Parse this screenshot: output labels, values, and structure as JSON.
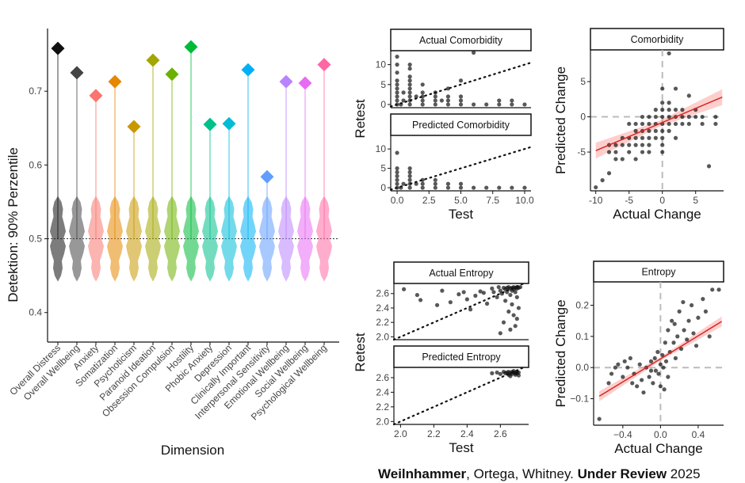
{
  "footer": {
    "author_bold": "Weilnhammer",
    "rest": ", Ortega, Whitney. ",
    "status_bold": "Under Review",
    "year": " 2025"
  },
  "chart_data": [
    {
      "type": "violin",
      "ylabel": "Detektion: 90% Perzentile",
      "xlabel": "Dimension",
      "ylim": [
        0.36,
        0.785
      ],
      "yticks": [
        0.4,
        0.5,
        0.6,
        0.7
      ],
      "reference_line": 0.5,
      "categories": [
        "Overall Distress",
        "Overall Wellbeing",
        "Anxiety",
        "Somatization",
        "Psychoticism",
        "Paranoid Ideation",
        "Obsession Compulsion",
        "Hostility",
        "Phobic Anxiety",
        "Depression",
        "Clinically Important",
        "Interpersonal Sensitivity",
        "Emotional Wellbeing",
        "Social Wellbeing",
        "Psychological Wellbeing"
      ],
      "colors": [
        "#111111",
        "#444444",
        "#F8766D",
        "#E58700",
        "#C99800",
        "#A3A500",
        "#6BB100",
        "#00BA38",
        "#00C08B",
        "#00BCD8",
        "#00B0F6",
        "#619CFF",
        "#B983FF",
        "#E76BF3",
        "#FF67A4"
      ],
      "values": [
        0.758,
        0.725,
        0.694,
        0.713,
        0.652,
        0.742,
        0.723,
        0.76,
        0.655,
        0.656,
        0.729,
        0.584,
        0.713,
        0.711,
        0.736
      ]
    },
    {
      "type": "scatter",
      "title": "Actual Comorbidity",
      "ylabel": "Retest",
      "xlim": [
        -0.5,
        10.5
      ],
      "ylim": [
        -0.8,
        13.5
      ],
      "yticks": [
        0,
        5,
        10
      ],
      "reference": "identity",
      "points": [
        [
          0,
          0
        ],
        [
          0,
          1
        ],
        [
          0,
          2
        ],
        [
          0,
          3
        ],
        [
          0,
          4
        ],
        [
          0,
          5
        ],
        [
          0,
          6
        ],
        [
          0,
          8
        ],
        [
          0,
          10
        ],
        [
          0,
          12
        ],
        [
          0.3,
          0
        ],
        [
          0.5,
          1
        ],
        [
          0.5,
          3
        ],
        [
          1,
          0
        ],
        [
          1,
          1
        ],
        [
          1,
          2
        ],
        [
          1,
          3
        ],
        [
          1,
          4
        ],
        [
          1,
          5
        ],
        [
          1,
          6
        ],
        [
          1,
          7
        ],
        [
          1,
          9
        ],
        [
          1,
          10
        ],
        [
          1.5,
          2
        ],
        [
          2,
          0
        ],
        [
          2,
          1
        ],
        [
          2,
          2
        ],
        [
          2,
          3
        ],
        [
          2,
          5
        ],
        [
          3,
          0
        ],
        [
          3,
          1
        ],
        [
          3,
          2
        ],
        [
          3,
          3
        ],
        [
          3.5,
          1
        ],
        [
          4,
          0
        ],
        [
          4,
          1
        ],
        [
          4,
          2
        ],
        [
          4,
          4
        ],
        [
          5,
          0
        ],
        [
          5,
          1
        ],
        [
          5,
          2
        ],
        [
          5,
          6
        ],
        [
          6,
          0
        ],
        [
          6,
          13
        ],
        [
          7,
          0
        ],
        [
          8,
          0
        ],
        [
          8,
          1
        ],
        [
          9,
          0
        ],
        [
          9,
          1
        ],
        [
          10,
          0
        ]
      ]
    },
    {
      "type": "scatter",
      "title": "Predicted Comorbidity",
      "xlabel": "Test",
      "ylabel": "Retest",
      "xlim": [
        -0.5,
        10.5
      ],
      "ylim": [
        -0.8,
        13.5
      ],
      "xticks": [
        0.0,
        2.5,
        5.0,
        7.5,
        10.0
      ],
      "xtick_labels": [
        "0.0",
        "2.5",
        "5.0",
        "7.5",
        "10.0"
      ],
      "yticks": [
        0,
        5,
        10
      ],
      "reference": "identity",
      "points": [
        [
          0,
          0
        ],
        [
          0,
          1
        ],
        [
          0,
          2
        ],
        [
          0,
          3
        ],
        [
          0,
          4
        ],
        [
          0,
          5
        ],
        [
          0,
          9
        ],
        [
          0.3,
          0
        ],
        [
          0.5,
          1
        ],
        [
          1,
          0
        ],
        [
          1,
          1
        ],
        [
          1,
          2
        ],
        [
          1,
          3
        ],
        [
          1,
          4
        ],
        [
          1,
          5
        ],
        [
          1.5,
          1
        ],
        [
          2,
          0
        ],
        [
          2,
          1
        ],
        [
          2,
          2
        ],
        [
          3,
          0
        ],
        [
          3,
          1
        ],
        [
          3,
          2
        ],
        [
          4,
          0
        ],
        [
          4,
          1
        ],
        [
          5,
          0
        ],
        [
          5,
          1
        ],
        [
          6,
          0
        ],
        [
          7,
          0
        ],
        [
          8,
          0
        ],
        [
          9,
          0
        ],
        [
          10,
          0
        ]
      ]
    },
    {
      "type": "scatter",
      "title": "Comorbidity",
      "xlabel": "Actual Change",
      "ylabel": "Predicted Change",
      "xlim": [
        -10.8,
        9.2
      ],
      "ylim": [
        -10.5,
        9.5
      ],
      "xticks": [
        -10,
        -5,
        0,
        5
      ],
      "yticks": [
        -5,
        0,
        5
      ],
      "zero_lines": true,
      "regression": {
        "x": [
          -10,
          9
        ],
        "y": [
          -4.8,
          2.8
        ]
      },
      "points": [
        [
          -10,
          -10
        ],
        [
          -9,
          -9
        ],
        [
          -8,
          -8
        ],
        [
          -8,
          -5
        ],
        [
          -8,
          -4
        ],
        [
          -7,
          -6
        ],
        [
          -7,
          -5
        ],
        [
          -7,
          -4
        ],
        [
          -6,
          -6
        ],
        [
          -6,
          -4
        ],
        [
          -6,
          -3
        ],
        [
          -5,
          -5
        ],
        [
          -5,
          -4
        ],
        [
          -5,
          -3
        ],
        [
          -5,
          -1
        ],
        [
          -4,
          -6
        ],
        [
          -4,
          -4
        ],
        [
          -4,
          -3
        ],
        [
          -4,
          -2
        ],
        [
          -4,
          -1
        ],
        [
          -3,
          -5
        ],
        [
          -3,
          -4
        ],
        [
          -3,
          -3
        ],
        [
          -3,
          -2
        ],
        [
          -3,
          -1
        ],
        [
          -3,
          0
        ],
        [
          -2,
          -5
        ],
        [
          -2,
          -4
        ],
        [
          -2,
          -3
        ],
        [
          -2,
          -2
        ],
        [
          -2,
          -1
        ],
        [
          -2,
          0
        ],
        [
          -1,
          -3
        ],
        [
          -1,
          -2
        ],
        [
          -1,
          -1
        ],
        [
          -1,
          0
        ],
        [
          -1,
          1
        ],
        [
          0,
          -5
        ],
        [
          0,
          -4
        ],
        [
          0,
          -3
        ],
        [
          0,
          -2
        ],
        [
          0,
          -1
        ],
        [
          0,
          0
        ],
        [
          0,
          1
        ],
        [
          0,
          2
        ],
        [
          0,
          4
        ],
        [
          1,
          -2
        ],
        [
          1,
          -1
        ],
        [
          1,
          0
        ],
        [
          1,
          1
        ],
        [
          1,
          2
        ],
        [
          1,
          9
        ],
        [
          2,
          -3
        ],
        [
          2,
          -1
        ],
        [
          2,
          0
        ],
        [
          2,
          1
        ],
        [
          2,
          4
        ],
        [
          3,
          -1
        ],
        [
          3,
          0
        ],
        [
          3,
          1
        ],
        [
          4,
          -1
        ],
        [
          4,
          0
        ],
        [
          4,
          3
        ],
        [
          5,
          0
        ],
        [
          5,
          1
        ],
        [
          6,
          -1
        ],
        [
          6,
          0
        ],
        [
          7,
          -7
        ],
        [
          8,
          -1
        ],
        [
          8,
          0
        ]
      ]
    },
    {
      "type": "scatter",
      "title": "Actual Entropy",
      "ylabel": "Retest",
      "xlim": [
        1.96,
        2.77
      ],
      "ylim": [
        1.96,
        2.74
      ],
      "yticks": [
        2.0,
        2.2,
        2.4,
        2.6
      ],
      "ytick_labels": [
        "2.0",
        "2.2",
        "2.4",
        "2.6"
      ],
      "reference": "identity",
      "points": [
        [
          2.02,
          2.66
        ],
        [
          2.1,
          2.58
        ],
        [
          2.12,
          2.51
        ],
        [
          2.22,
          2.44
        ],
        [
          2.25,
          2.64
        ],
        [
          2.3,
          2.48
        ],
        [
          2.35,
          2.59
        ],
        [
          2.38,
          2.62
        ],
        [
          2.4,
          2.52
        ],
        [
          2.42,
          2.38
        ],
        [
          2.45,
          2.57
        ],
        [
          2.48,
          2.63
        ],
        [
          2.5,
          2.61
        ],
        [
          2.52,
          2.46
        ],
        [
          2.55,
          2.67
        ],
        [
          2.56,
          2.62
        ],
        [
          2.58,
          2.55
        ],
        [
          2.59,
          2.69
        ],
        [
          2.6,
          2.64
        ],
        [
          2.6,
          2.05
        ],
        [
          2.61,
          2.6
        ],
        [
          2.62,
          2.68
        ],
        [
          2.62,
          2.2
        ],
        [
          2.63,
          2.66
        ],
        [
          2.63,
          2.5
        ],
        [
          2.64,
          2.68
        ],
        [
          2.64,
          2.62
        ],
        [
          2.65,
          2.69
        ],
        [
          2.65,
          2.35
        ],
        [
          2.66,
          2.67
        ],
        [
          2.66,
          2.58
        ],
        [
          2.66,
          2.1
        ],
        [
          2.67,
          2.68
        ],
        [
          2.67,
          2.64
        ],
        [
          2.67,
          2.45
        ],
        [
          2.68,
          2.69
        ],
        [
          2.68,
          2.66
        ],
        [
          2.68,
          2.3
        ],
        [
          2.69,
          2.68
        ],
        [
          2.69,
          2.62
        ],
        [
          2.69,
          2.15
        ],
        [
          2.7,
          2.69
        ],
        [
          2.7,
          2.67
        ],
        [
          2.7,
          2.55
        ],
        [
          2.7,
          2.25
        ],
        [
          2.71,
          2.68
        ],
        [
          2.71,
          2.4
        ],
        [
          2.72,
          2.69
        ]
      ]
    },
    {
      "type": "scatter",
      "title": "Predicted Entropy",
      "xlabel": "Test",
      "ylabel": "Retest",
      "xlim": [
        1.96,
        2.77
      ],
      "ylim": [
        1.96,
        2.74
      ],
      "xticks": [
        2.0,
        2.2,
        2.4,
        2.6
      ],
      "xtick_labels": [
        "2.0",
        "2.2",
        "2.4",
        "2.6"
      ],
      "yticks": [
        2.0,
        2.2,
        2.4,
        2.6
      ],
      "ytick_labels": [
        "2.0",
        "2.2",
        "2.4",
        "2.6"
      ],
      "reference": "identity",
      "points": [
        [
          2.55,
          2.66
        ],
        [
          2.58,
          2.67
        ],
        [
          2.6,
          2.65
        ],
        [
          2.62,
          2.68
        ],
        [
          2.63,
          2.66
        ],
        [
          2.64,
          2.67
        ],
        [
          2.65,
          2.64
        ],
        [
          2.65,
          2.68
        ],
        [
          2.66,
          2.66
        ],
        [
          2.66,
          2.62
        ],
        [
          2.67,
          2.68
        ],
        [
          2.67,
          2.65
        ],
        [
          2.68,
          2.67
        ],
        [
          2.68,
          2.69
        ],
        [
          2.69,
          2.66
        ],
        [
          2.69,
          2.64
        ],
        [
          2.7,
          2.68
        ],
        [
          2.7,
          2.66
        ],
        [
          2.71,
          2.67
        ],
        [
          2.71,
          2.63
        ]
      ]
    },
    {
      "type": "scatter",
      "title": "Entropy",
      "xlabel": "Actual Change",
      "ylabel": "Predicted Change",
      "xlim": [
        -0.71,
        0.67
      ],
      "ylim": [
        -0.185,
        0.275
      ],
      "xticks": [
        -0.4,
        0.0,
        0.4
      ],
      "xtick_labels": [
        "−0.4",
        "0.0",
        "0.4"
      ],
      "yticks": [
        -0.1,
        0.0,
        0.1,
        0.2
      ],
      "ytick_labels": [
        "−0.1",
        "0.0",
        "0.1",
        "0.2"
      ],
      "zero_lines": true,
      "regression": {
        "x": [
          -0.65,
          0.65
        ],
        "y": [
          -0.092,
          0.148
        ]
      },
      "points": [
        [
          -0.65,
          -0.165
        ],
        [
          -0.55,
          -0.05
        ],
        [
          -0.52,
          -0.02
        ],
        [
          -0.48,
          0.0
        ],
        [
          -0.45,
          0.01
        ],
        [
          -0.4,
          -0.03
        ],
        [
          -0.38,
          0.02
        ],
        [
          -0.35,
          0.0
        ],
        [
          -0.32,
          0.03
        ],
        [
          -0.3,
          -0.05
        ],
        [
          -0.28,
          -0.02
        ],
        [
          -0.25,
          -0.06
        ],
        [
          -0.22,
          0.01
        ],
        [
          -0.2,
          -0.04
        ],
        [
          -0.18,
          -0.08
        ],
        [
          -0.15,
          0.0
        ],
        [
          -0.12,
          -0.03
        ],
        [
          -0.1,
          0.02
        ],
        [
          -0.08,
          -0.05
        ],
        [
          -0.06,
          0.03
        ],
        [
          -0.05,
          -0.01
        ],
        [
          -0.03,
          0.05
        ],
        [
          -0.02,
          -0.02
        ],
        [
          0.0,
          0.01
        ],
        [
          0.0,
          -0.06
        ],
        [
          0.02,
          0.04
        ],
        [
          0.03,
          0.0
        ],
        [
          0.05,
          0.08
        ],
        [
          0.06,
          0.02
        ],
        [
          0.08,
          0.12
        ],
        [
          0.1,
          0.05
        ],
        [
          0.12,
          0.15
        ],
        [
          0.14,
          0.08
        ],
        [
          0.16,
          0.03
        ],
        [
          0.18,
          0.1
        ],
        [
          0.2,
          0.18
        ],
        [
          0.22,
          0.06
        ],
        [
          0.25,
          0.12
        ],
        [
          0.28,
          0.09
        ],
        [
          0.3,
          0.15
        ],
        [
          0.33,
          0.2
        ],
        [
          0.35,
          0.11
        ],
        [
          0.38,
          0.07
        ],
        [
          0.4,
          0.16
        ],
        [
          0.45,
          0.22
        ],
        [
          0.48,
          0.18
        ],
        [
          0.52,
          0.1
        ],
        [
          0.55,
          0.25
        ],
        [
          0.62,
          0.25
        ],
        [
          0.08,
          -0.03
        ],
        [
          0.15,
          0.14
        ],
        [
          0.04,
          -0.07
        ],
        [
          -0.1,
          -0.01
        ],
        [
          0.24,
          0.21
        ]
      ]
    }
  ]
}
